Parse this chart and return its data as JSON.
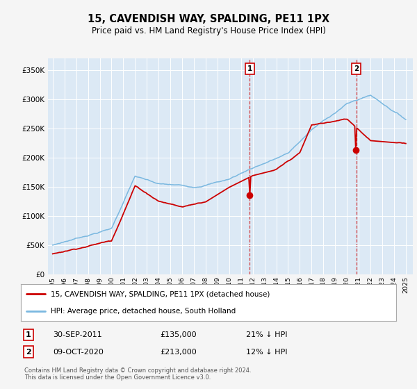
{
  "title": "15, CAVENDISH WAY, SPALDING, PE11 1PX",
  "subtitle": "Price paid vs. HM Land Registry's House Price Index (HPI)",
  "hpi_color": "#7ab8e0",
  "price_color": "#cc0000",
  "vline_color": "#cc0000",
  "background_color": "#dce9f5",
  "fig_bg": "#f5f5f5",
  "ylim": [
    0,
    370000
  ],
  "yticks": [
    0,
    50000,
    100000,
    150000,
    200000,
    250000,
    300000,
    350000
  ],
  "ytick_labels": [
    "£0",
    "£50K",
    "£100K",
    "£150K",
    "£200K",
    "£250K",
    "£300K",
    "£350K"
  ],
  "legend_label_price": "15, CAVENDISH WAY, SPALDING, PE11 1PX (detached house)",
  "legend_label_hpi": "HPI: Average price, detached house, South Holland",
  "transaction1_date": "30-SEP-2011",
  "transaction1_price": 135000,
  "transaction1_pct": "21% ↓ HPI",
  "transaction1_year": 2011.75,
  "transaction2_date": "09-OCT-2020",
  "transaction2_price": 213000,
  "transaction2_pct": "12% ↓ HPI",
  "transaction2_year": 2020.79,
  "footer": "Contains HM Land Registry data © Crown copyright and database right 2024.\nThis data is licensed under the Open Government Licence v3.0."
}
